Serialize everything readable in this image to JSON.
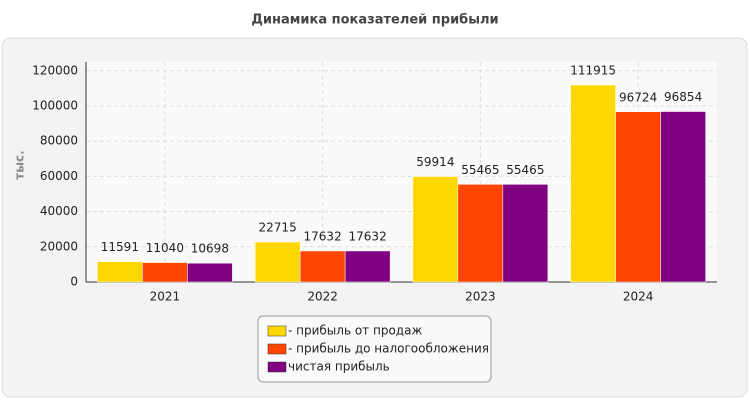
{
  "chart_data": {
    "type": "bar",
    "title": "Динамика показателей прибыли",
    "y_label": "тыс.",
    "categories": [
      "2021",
      "2022",
      "2023",
      "2024"
    ],
    "series": [
      {
        "name": "- прибыль от продаж",
        "color": "#ffd700",
        "values": [
          11591,
          22715,
          59914,
          111915
        ]
      },
      {
        "name": "- прибыль до налогообложения",
        "color": "#ff4500",
        "values": [
          11040,
          17632,
          55465,
          96724
        ]
      },
      {
        "name": "чистая прибыль",
        "color": "#800080",
        "values": [
          10698,
          17632,
          55465,
          96854
        ]
      }
    ],
    "ylim": [
      0,
      125000
    ],
    "yticks": [
      0,
      20000,
      40000,
      60000,
      80000,
      100000,
      120000
    ],
    "grid": true,
    "legend": "bottom"
  }
}
